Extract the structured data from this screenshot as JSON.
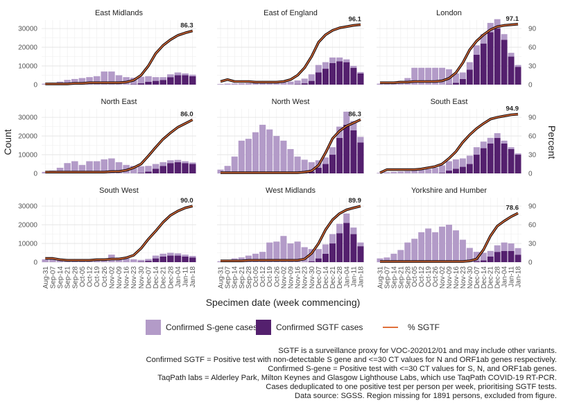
{
  "chart_data": {
    "type": "bar",
    "layout": "facet grid 3x3, bars with overlaid line on secondary axis",
    "xlabel": "Specimen date (week commencing)",
    "ylabel_left": "Count",
    "ylabel_right": "Percent",
    "y_left_ticks": [
      0,
      10000,
      20000,
      30000
    ],
    "y_left_range": [
      0,
      34500
    ],
    "y_right_ticks": [
      0,
      30,
      60,
      90
    ],
    "y_right_range": [
      0,
      103.5
    ],
    "x_ticks": [
      "Aug-31",
      "Sep-07",
      "Sep-14",
      "Sep-21",
      "Sep-28",
      "Oct-05",
      "Oct-12",
      "Oct-19",
      "Oct-26",
      "Nov-02",
      "Nov-09",
      "Nov-16",
      "Nov-23",
      "Nov-30",
      "Dec-07",
      "Dec-14",
      "Dec-21",
      "Dec-28",
      "Jan-04",
      "Jan-11",
      "Jan-18"
    ],
    "legend": [
      {
        "label": "Confirmed S-gene cases",
        "color": "#b39bc8"
      },
      {
        "label": "Confirmed SGTF cases",
        "color": "#54206e"
      },
      {
        "label": "% SGTF",
        "color": "#e0703a"
      }
    ],
    "grid": true,
    "legend_position": "bottom",
    "panels": [
      {
        "region": "East Midlands",
        "end_label": "86.3",
        "sgene": [
          500,
          1000,
          1600,
          2500,
          3000,
          3500,
          4000,
          4500,
          7000,
          7000,
          5000,
          4000,
          3500,
          3500,
          3000,
          2000,
          1500,
          1500,
          1500,
          1000,
          800
        ],
        "sgtf": [
          0,
          0,
          0,
          0,
          0,
          0,
          0,
          0,
          0,
          0,
          0,
          0,
          200,
          700,
          1500,
          2000,
          2500,
          4000,
          5000,
          5000,
          4500
        ],
        "pct": [
          1,
          1,
          1,
          1,
          2,
          2,
          3,
          3,
          3,
          3,
          3,
          4,
          7,
          15,
          30,
          50,
          63,
          72,
          79,
          83,
          86.3
        ]
      },
      {
        "region": "East of England",
        "end_label": "96.1",
        "sgene": [
          300,
          500,
          600,
          700,
          800,
          900,
          900,
          1000,
          1100,
          1300,
          1600,
          2000,
          2500,
          3500,
          4000,
          3500,
          3000,
          2000,
          1500,
          1000,
          700
        ],
        "sgtf": [
          0,
          0,
          0,
          0,
          0,
          0,
          0,
          0,
          0,
          0,
          0,
          200,
          700,
          2000,
          6500,
          8500,
          11500,
          12500,
          12000,
          9000,
          6000
        ],
        "pct": [
          5,
          8,
          5,
          5,
          5,
          4,
          4,
          4,
          4,
          5,
          8,
          15,
          27,
          45,
          68,
          80,
          87,
          91,
          93,
          95,
          96.1
        ]
      },
      {
        "region": "London",
        "end_label": "97.1",
        "sgene": [
          500,
          1000,
          1500,
          2000,
          3500,
          9000,
          9000,
          9000,
          9000,
          9000,
          8000,
          5000,
          3500,
          4000,
          5000,
          5000,
          5000,
          5000,
          3000,
          2000,
          1000
        ],
        "sgtf": [
          0,
          0,
          0,
          0,
          0,
          0,
          0,
          0,
          0,
          0,
          200,
          1000,
          3000,
          8000,
          16000,
          22000,
          28000,
          30000,
          24000,
          15000,
          9500
        ],
        "pct": [
          3,
          3,
          3,
          4,
          4,
          5,
          5,
          5,
          5,
          6,
          10,
          19,
          35,
          56,
          70,
          80,
          88,
          93,
          95,
          96,
          97.1
        ]
      },
      {
        "region": "North East",
        "end_label": "86.0",
        "sgene": [
          800,
          1500,
          3000,
          5500,
          6500,
          4500,
          6500,
          6500,
          7500,
          8000,
          6000,
          4500,
          4000,
          3500,
          3000,
          2500,
          2000,
          1500,
          1200,
          1000,
          800
        ],
        "sgtf": [
          0,
          0,
          0,
          0,
          0,
          0,
          0,
          0,
          0,
          0,
          0,
          0,
          0,
          300,
          1000,
          2500,
          4000,
          5500,
          6000,
          5500,
          5000
        ],
        "pct": [
          2,
          2,
          2,
          2,
          2,
          2,
          2,
          2,
          2,
          3,
          3,
          5,
          9,
          15,
          28,
          42,
          55,
          65,
          74,
          80,
          86.0
        ]
      },
      {
        "region": "North West",
        "end_label": "86.3",
        "sgene": [
          2000,
          4000,
          9000,
          17500,
          18500,
          22000,
          26000,
          23500,
          20000,
          17500,
          13000,
          9000,
          7000,
          5000,
          4000,
          3500,
          4000,
          6000,
          7000,
          5000,
          3000
        ],
        "sgtf": [
          0,
          0,
          0,
          0,
          0,
          0,
          0,
          0,
          0,
          0,
          0,
          0,
          300,
          1000,
          3000,
          5000,
          10000,
          19000,
          26000,
          23000,
          16500
        ],
        "pct": [
          1,
          1,
          1,
          1,
          1,
          1,
          1,
          1,
          1,
          1,
          1,
          1,
          2,
          4,
          13,
          33,
          56,
          68,
          76,
          81,
          86.3
        ]
      },
      {
        "region": "South East",
        "end_label": "94.9",
        "sgene": [
          300,
          600,
          800,
          1000,
          1200,
          1500,
          1800,
          2300,
          3000,
          4000,
          5000,
          5000,
          4500,
          4500,
          4000,
          3500,
          3000,
          2500,
          1500,
          1000,
          700
        ],
        "sgtf": [
          0,
          0,
          0,
          0,
          0,
          0,
          0,
          0,
          0,
          300,
          1500,
          2500,
          3500,
          5000,
          10000,
          13500,
          16000,
          19000,
          16000,
          13000,
          10000
        ],
        "pct": [
          1,
          6,
          6,
          6,
          6,
          6,
          7,
          9,
          11,
          15,
          24,
          35,
          50,
          62,
          72,
          80,
          87,
          90,
          92,
          94,
          94.9
        ]
      },
      {
        "region": "South West",
        "end_label": "90.0",
        "sgene": [
          1500,
          1500,
          1000,
          700,
          800,
          900,
          1000,
          1500,
          2000,
          4000,
          2500,
          2000,
          1500,
          1000,
          1000,
          1500,
          1500,
          1500,
          1200,
          1000,
          800
        ],
        "sgtf": [
          0,
          0,
          0,
          0,
          0,
          0,
          0,
          0,
          0,
          0,
          0,
          0,
          0,
          200,
          700,
          2000,
          3000,
          3500,
          3500,
          3000,
          2500
        ],
        "pct": [
          6,
          6,
          4,
          3,
          3,
          3,
          3,
          4,
          4,
          5,
          5,
          7,
          11,
          22,
          37,
          50,
          64,
          75,
          82,
          87,
          90.0
        ]
      },
      {
        "region": "West Midlands",
        "end_label": "89.9",
        "sgene": [
          500,
          1000,
          2000,
          2500,
          3500,
          4500,
          5500,
          10500,
          11000,
          14000,
          10000,
          11000,
          8000,
          6500,
          5000,
          5000,
          5000,
          5000,
          5000,
          3500,
          2000
        ],
        "sgtf": [
          0,
          0,
          0,
          0,
          0,
          0,
          0,
          0,
          0,
          0,
          0,
          0,
          0,
          500,
          2000,
          4500,
          10000,
          15500,
          21000,
          15000,
          8500
        ],
        "pct": [
          2,
          2,
          2,
          2,
          3,
          3,
          3,
          3,
          3,
          3,
          3,
          3,
          5,
          14,
          30,
          52,
          68,
          78,
          84,
          87,
          89.9
        ]
      },
      {
        "region": "Yorkshire and Humber",
        "end_label": "78.6",
        "sgene": [
          2000,
          2500,
          4500,
          6500,
          10500,
          12500,
          16000,
          18000,
          16000,
          19000,
          20000,
          17000,
          12000,
          7500,
          5000,
          4000,
          3000,
          3500,
          4500,
          4000,
          3500
        ],
        "sgtf": [
          0,
          0,
          0,
          0,
          0,
          0,
          0,
          0,
          0,
          0,
          0,
          0,
          0,
          100,
          500,
          1000,
          3000,
          5500,
          6000,
          6000,
          4000
        ],
        "pct": [
          1,
          1,
          1,
          1,
          1,
          1,
          1,
          1,
          1,
          1,
          1,
          1,
          1,
          2,
          5,
          20,
          42,
          58,
          66,
          73,
          78.6
        ]
      }
    ]
  },
  "notes": [
    "SGTF is a surveillance proxy for VOC-202012/01 and may include other variants.",
    "Confirmed SGTF = Positive test with non-detectable S gene and <=30 CT values for N and ORF1ab genes respectively.",
    "Confirmed S-gene = Positive test with <=30 CT values for S, N, and ORF1ab genes.",
    "TaqPath labs = Alderley Park, Milton Keynes and Glasgow Lighthouse Labs, which use TaqPath COVID-19 RT-PCR.",
    "Cases deduplicated to one positive test per person per week, prioritising SGTF tests.",
    "Data source: SGSS. Region missing for 1891 persons, excluded from figure."
  ]
}
